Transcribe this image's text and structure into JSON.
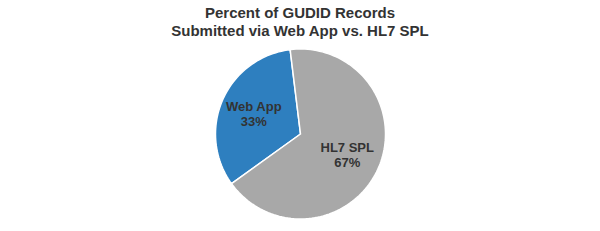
{
  "chart_data": {
    "type": "pie",
    "title": "Percent of GUDID Records\nSubmitted via Web App vs. HL7 SPL",
    "categories": [
      "Web App",
      "HL7 SPL"
    ],
    "values": [
      33,
      67
    ],
    "value_labels": [
      "33%",
      "67%"
    ],
    "data_labels": true,
    "colors": [
      "#2E7FBF",
      "#A8A8A8"
    ]
  }
}
